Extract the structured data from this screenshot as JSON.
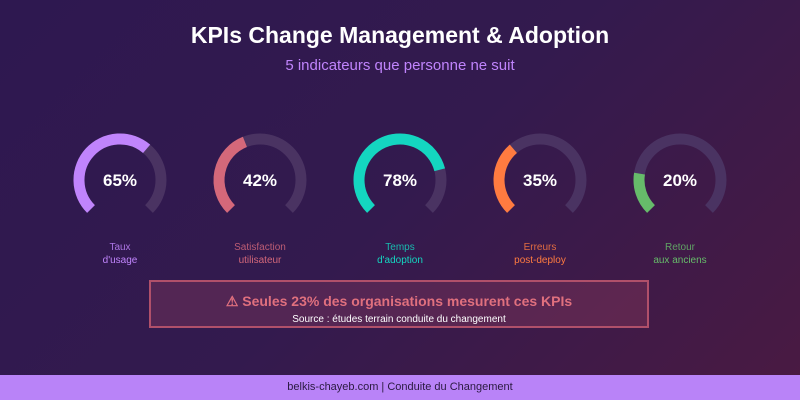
{
  "header": {
    "title": "KPIs Change Management & Adoption",
    "subtitle": "5 indicateurs que personne ne suit"
  },
  "track_color": "#4a3362",
  "kpis": [
    {
      "value": "65%",
      "fraction": 0.65,
      "line1": "Taux",
      "line2": "d'usage",
      "color": "#c084fc"
    },
    {
      "value": "42%",
      "fraction": 0.42,
      "line1": "Satisfaction",
      "line2": "utilisateur",
      "color": "#d4687a"
    },
    {
      "value": "78%",
      "fraction": 0.78,
      "line1": "Temps",
      "line2": "d'adoption",
      "color": "#14d6c0"
    },
    {
      "value": "35%",
      "fraction": 0.35,
      "line1": "Erreurs",
      "line2": "post-deploy",
      "color": "#ff7b40"
    },
    {
      "value": "20%",
      "fraction": 0.2,
      "line1": "Retour",
      "line2": "aux anciens",
      "color": "#66bb6a"
    }
  ],
  "callout": {
    "icon": "warning-icon",
    "main": "⚠ Seules 23% des organisations mesurent ces KPIs",
    "source": "Source : études terrain conduite du changement"
  },
  "footer": {
    "text": "belkis-chayeb.com | Conduite du Changement"
  }
}
